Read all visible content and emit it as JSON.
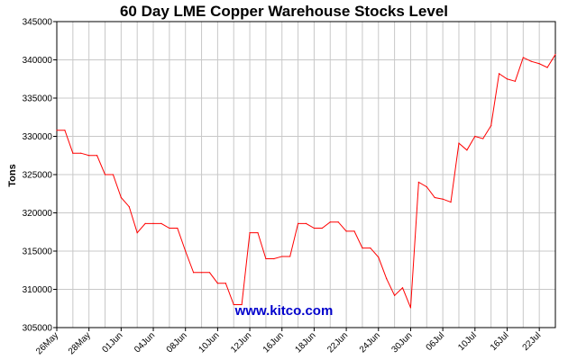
{
  "chart_data": {
    "type": "line",
    "title": "60 Day LME Copper Warehouse Stocks Level",
    "ylabel": "Tons",
    "xlabel": "",
    "watermark": "www.kitco.com",
    "line_color": "#ff0000",
    "grid": true,
    "ylim": [
      305000,
      345000
    ],
    "yticks": [
      305000,
      310000,
      315000,
      320000,
      325000,
      330000,
      335000,
      340000,
      345000
    ],
    "xticks": [
      "26May",
      "28May",
      "01Jun",
      "04Jun",
      "08Jun",
      "10Jun",
      "12Jun",
      "16Jun",
      "18Jun",
      "22Jun",
      "24Jun",
      "30Jun",
      "06Jul",
      "10Jul",
      "16Jul",
      "22Jul"
    ],
    "series": [
      {
        "values": [
          330800,
          330800,
          327800,
          327800,
          327500,
          327500,
          325000,
          325000,
          322000,
          320800,
          317400,
          318600,
          318600,
          318600,
          318000,
          318000,
          315000,
          312200,
          312200,
          312200,
          310800,
          310800,
          308000,
          308000,
          317400,
          317400,
          314000,
          314000,
          314300,
          314300,
          318600,
          318600,
          318000,
          318000,
          318800,
          318800,
          317600,
          317600,
          315400,
          315400,
          314200,
          311400,
          309200,
          310200,
          307600,
          324000,
          323400,
          322000,
          321800,
          321400,
          329100,
          328200,
          330000,
          329700,
          331400,
          338200,
          337500,
          337200,
          340300,
          339800,
          339500,
          339000,
          340700
        ]
      }
    ]
  }
}
